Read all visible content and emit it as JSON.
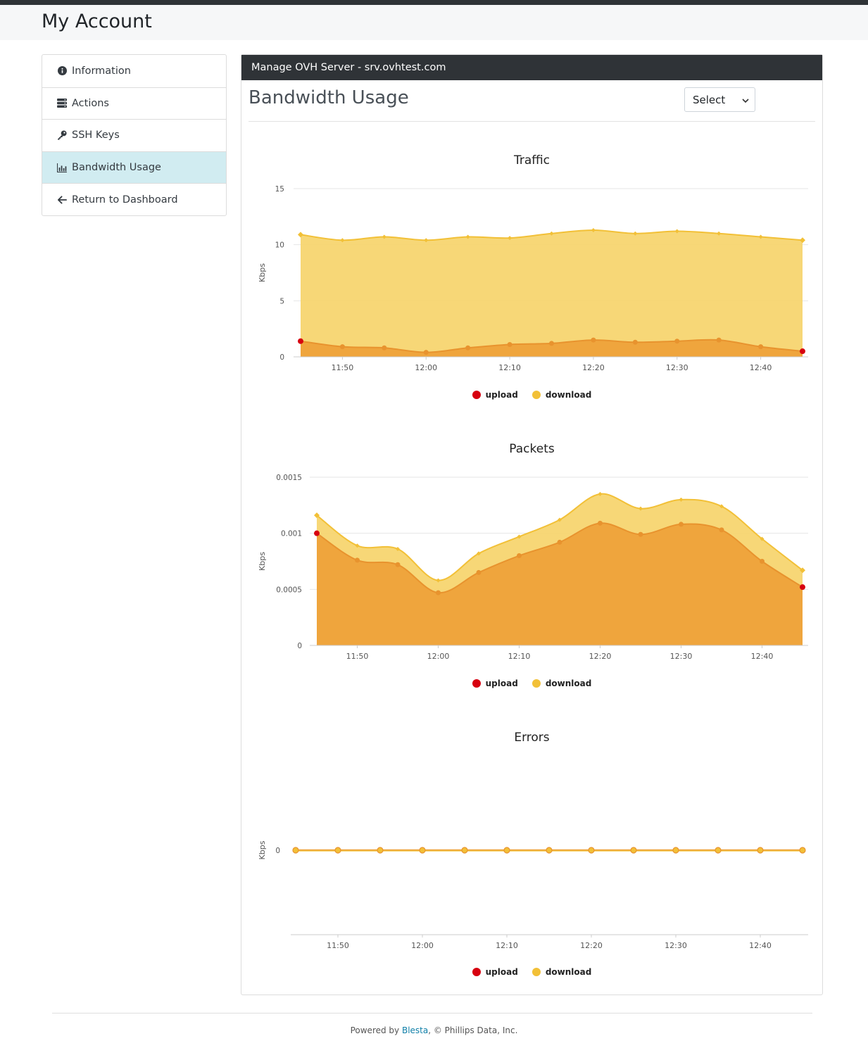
{
  "page": {
    "title": "My Account"
  },
  "sidebar": {
    "items": [
      {
        "label": "Information",
        "icon": "info-circle-icon",
        "active": false
      },
      {
        "label": "Actions",
        "icon": "server-icon",
        "active": false
      },
      {
        "label": "SSH Keys",
        "icon": "key-icon",
        "active": false
      },
      {
        "label": "Bandwidth Usage",
        "icon": "bar-chart-icon",
        "active": true
      },
      {
        "label": "Return to Dashboard",
        "icon": "arrow-left-icon",
        "active": false
      }
    ]
  },
  "panel": {
    "header": "Manage OVH Server - srv.ovhtest.com",
    "title": "Bandwidth Usage",
    "select": {
      "value": "Select"
    }
  },
  "colors": {
    "upload": "#d7000f",
    "download": "#f2c037",
    "upload_fill": "#eea23a",
    "download_fill": "#f6d46b"
  },
  "legend": {
    "upload": "upload",
    "download": "download"
  },
  "chart_data": [
    {
      "type": "area",
      "title": "Traffic",
      "ylabel": "Kbps",
      "ylim": [
        0,
        15
      ],
      "yticks": [
        "0",
        "5",
        "10",
        "15"
      ],
      "xticks": [
        "11:50",
        "12:00",
        "12:10",
        "12:20",
        "12:30",
        "12:40"
      ],
      "x": [
        "11:45",
        "11:50",
        "11:55",
        "12:00",
        "12:05",
        "12:10",
        "12:15",
        "12:20",
        "12:25",
        "12:30",
        "12:35",
        "12:40",
        "12:45"
      ],
      "series": [
        {
          "name": "upload",
          "values": [
            1.4,
            0.9,
            0.8,
            0.4,
            0.8,
            1.1,
            1.2,
            1.5,
            1.3,
            1.4,
            1.5,
            0.9,
            0.5
          ]
        },
        {
          "name": "download",
          "values": [
            10.9,
            10.4,
            10.7,
            10.4,
            10.7,
            10.6,
            11.0,
            11.3,
            11.0,
            11.2,
            11.0,
            10.7,
            10.4
          ]
        }
      ]
    },
    {
      "type": "area",
      "title": "Packets",
      "ylabel": "Kbps",
      "ylim": [
        0,
        0.0015
      ],
      "yticks": [
        "0",
        "0.0005",
        "0.001",
        "0.0015"
      ],
      "xticks": [
        "11:50",
        "12:00",
        "12:10",
        "12:20",
        "12:30",
        "12:40"
      ],
      "x": [
        "11:45",
        "11:50",
        "11:55",
        "12:00",
        "12:05",
        "12:10",
        "12:15",
        "12:20",
        "12:25",
        "12:30",
        "12:35",
        "12:40",
        "12:45"
      ],
      "series": [
        {
          "name": "upload",
          "values": [
            0.001,
            0.00076,
            0.00072,
            0.00047,
            0.00065,
            0.0008,
            0.00092,
            0.00109,
            0.00099,
            0.00108,
            0.00103,
            0.00075,
            0.00052
          ]
        },
        {
          "name": "download",
          "values": [
            0.00116,
            0.00089,
            0.00086,
            0.00058,
            0.00082,
            0.00097,
            0.00112,
            0.00135,
            0.00122,
            0.0013,
            0.00124,
            0.00095,
            0.00067
          ]
        }
      ]
    },
    {
      "type": "line",
      "title": "Errors",
      "ylabel": "Kbps",
      "yticks": [
        "0"
      ],
      "xticks": [
        "11:50",
        "12:00",
        "12:10",
        "12:20",
        "12:30",
        "12:40"
      ],
      "x": [
        "11:45",
        "11:50",
        "11:55",
        "12:00",
        "12:05",
        "12:10",
        "12:15",
        "12:20",
        "12:25",
        "12:30",
        "12:35",
        "12:40",
        "12:45"
      ],
      "series": [
        {
          "name": "upload",
          "values": [
            0,
            0,
            0,
            0,
            0,
            0,
            0,
            0,
            0,
            0,
            0,
            0,
            0
          ]
        },
        {
          "name": "download",
          "values": [
            0,
            0,
            0,
            0,
            0,
            0,
            0,
            0,
            0,
            0,
            0,
            0,
            0
          ]
        }
      ]
    }
  ],
  "footer": {
    "prefix": "Powered by ",
    "link": "Blesta",
    "suffix": ", © Phillips Data, Inc."
  }
}
